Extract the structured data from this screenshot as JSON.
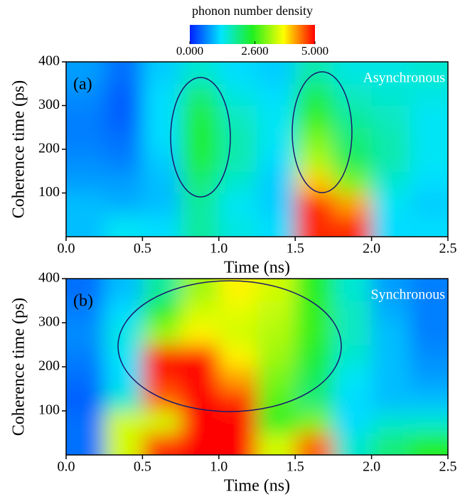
{
  "chart_data": [
    {
      "type": "heatmap",
      "panel_label": "(a)",
      "annotation": "Asynchronous",
      "x_label": "Time (ns)",
      "y_label": "Coherence time (ps)",
      "xlim": [
        0,
        2.5
      ],
      "ylim": [
        0,
        400
      ],
      "xticks": [
        {
          "value": 0,
          "label": "0.0"
        },
        0.5,
        {
          "value": 1,
          "label": "1.0"
        },
        1.5,
        {
          "value": 2,
          "label": "2.0"
        },
        2.5
      ],
      "yticks": [
        100,
        200,
        300,
        400
      ],
      "x": [
        0.125,
        0.375,
        0.625,
        0.875,
        1.125,
        1.375,
        1.625,
        1.875,
        2.125,
        2.375
      ],
      "y": [
        25,
        75,
        125,
        175,
        225,
        275,
        325,
        375
      ],
      "z": [
        [
          1.0,
          1.3,
          1.2,
          1.8,
          1.4,
          1.2,
          4.8,
          4.8,
          1.2,
          1.2
        ],
        [
          1.0,
          0.9,
          1.0,
          1.8,
          1.3,
          1.1,
          4.8,
          4.2,
          1.3,
          1.1
        ],
        [
          0.8,
          0.8,
          1.0,
          2.0,
          1.5,
          1.1,
          4.0,
          3.0,
          1.5,
          1.2
        ],
        [
          0.7,
          0.6,
          1.1,
          2.3,
          1.7,
          1.2,
          3.3,
          2.2,
          1.7,
          1.3
        ],
        [
          0.6,
          0.5,
          1.2,
          2.4,
          1.7,
          1.3,
          3.0,
          2.0,
          1.7,
          1.3
        ],
        [
          0.6,
          0.4,
          1.2,
          2.3,
          1.6,
          1.3,
          2.6,
          1.8,
          1.6,
          1.3
        ],
        [
          0.7,
          0.4,
          1.2,
          2.0,
          1.4,
          1.2,
          2.2,
          1.6,
          1.5,
          1.4
        ],
        [
          0.8,
          0.5,
          1.1,
          1.5,
          1.2,
          1.1,
          1.7,
          1.4,
          1.4,
          1.5
        ]
      ],
      "zlim": [
        0,
        5
      ],
      "colors": [
        "#0020ff",
        "#00e5ff",
        "#20f020",
        "#ffff00",
        "#ff0000"
      ],
      "colorbar": {
        "title": "phonon number density",
        "zlim": [
          0,
          5
        ],
        "ticks": [
          {
            "value": 0,
            "label": "0.000"
          },
          {
            "value": 2.6,
            "label": "2.600"
          },
          {
            "value": 5,
            "label": "5.000"
          }
        ],
        "colors": [
          "#0020ff",
          "#00e5ff",
          "#20f020",
          "#ffff00",
          "#ff0000"
        ]
      }
    },
    {
      "type": "heatmap",
      "panel_label": "(b)",
      "annotation": "Synchronous",
      "x_label": "Time (ns)",
      "y_label": "Coherence time (ps)",
      "xlim": [
        0,
        2.5
      ],
      "ylim": [
        0,
        400
      ],
      "xticks": [
        {
          "value": 0,
          "label": "0.0"
        },
        0.5,
        {
          "value": 1,
          "label": "1.0"
        },
        1.5,
        {
          "value": 2,
          "label": "2.0"
        },
        2.5
      ],
      "yticks": [
        100,
        200,
        300,
        400
      ],
      "x": [
        0.125,
        0.375,
        0.625,
        0.875,
        1.125,
        1.375,
        1.625,
        1.875,
        2.125,
        2.375
      ],
      "y": [
        25,
        75,
        125,
        175,
        225,
        275,
        325,
        375
      ],
      "z": [
        [
          0.5,
          3.5,
          4.8,
          5.0,
          5.0,
          3.5,
          4.5,
          1.5,
          2.0,
          2.5
        ],
        [
          0.5,
          3.5,
          3.5,
          5.0,
          5.0,
          2.5,
          3.0,
          1.2,
          1.5,
          1.5
        ],
        [
          0.4,
          1.5,
          4.5,
          5.0,
          4.8,
          2.8,
          2.0,
          1.2,
          1.0,
          1.0
        ],
        [
          0.5,
          1.2,
          4.8,
          5.0,
          4.2,
          3.0,
          2.2,
          1.3,
          1.0,
          0.8
        ],
        [
          0.6,
          1.3,
          5.0,
          5.0,
          3.8,
          3.2,
          2.4,
          1.5,
          1.0,
          0.7
        ],
        [
          0.7,
          1.4,
          3.2,
          3.8,
          3.5,
          3.3,
          2.6,
          1.6,
          1.0,
          0.6
        ],
        [
          0.6,
          1.2,
          2.5,
          3.5,
          3.6,
          3.4,
          2.6,
          1.6,
          0.9,
          0.6
        ],
        [
          0.5,
          1.0,
          1.8,
          3.2,
          3.8,
          3.5,
          2.5,
          1.5,
          0.8,
          0.6
        ]
      ],
      "zlim": [
        0,
        5
      ],
      "colors": [
        "#0020ff",
        "#00e5ff",
        "#20f020",
        "#ffff00",
        "#ff0000"
      ]
    }
  ]
}
